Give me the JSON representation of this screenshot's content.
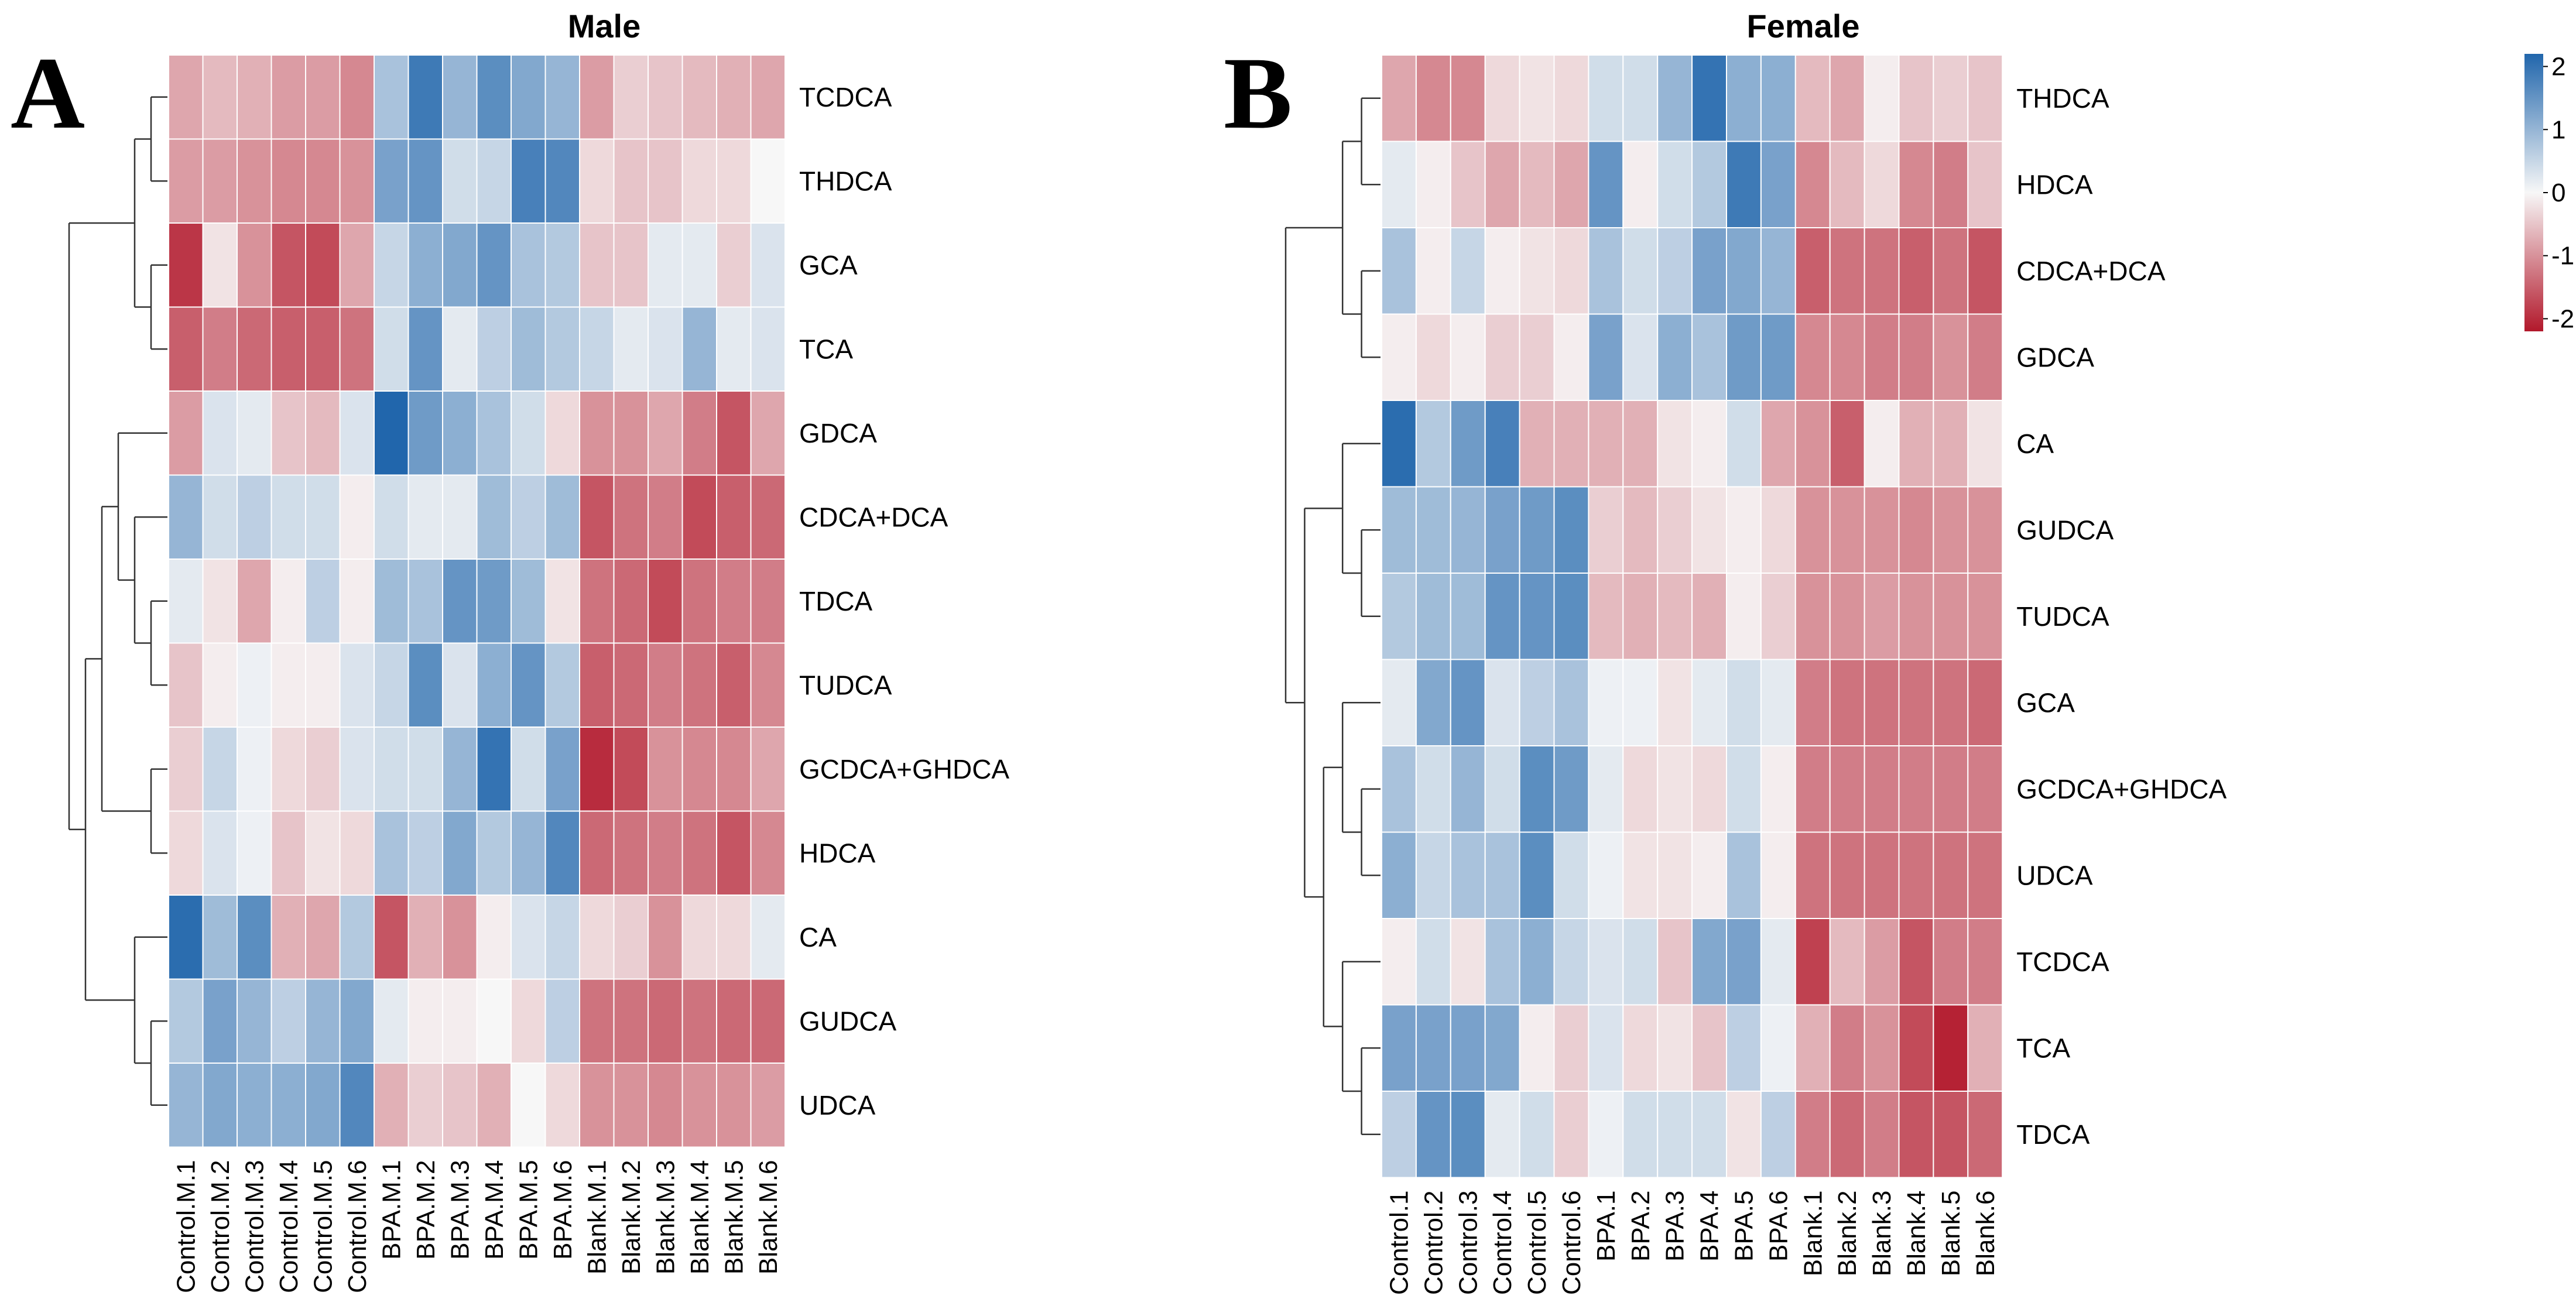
{
  "colors": {
    "low": "#b2182b",
    "mid": "#f7f7f7",
    "high": "#2166ac"
  },
  "legend": {
    "ticks": [
      2,
      1,
      0,
      -1,
      -2
    ],
    "range": [
      -2.2,
      2.2
    ]
  },
  "chart_data": [
    {
      "type": "heatmap",
      "panel_letter": "A",
      "title": "Male",
      "rows": [
        "TCDCA",
        "THDCA",
        "GCA",
        "TCA",
        "GDCA",
        "CDCA+DCA",
        "TDCA",
        "TUDCA",
        "GCDCA+GHDCA",
        "HDCA",
        "CA",
        "GUDCA",
        "UDCA"
      ],
      "columns": [
        "Control.M.1",
        "Control.M.2",
        "Control.M.3",
        "Control.M.4",
        "Control.M.5",
        "Control.M.6",
        "BPA.M.1",
        "BPA.M.2",
        "BPA.M.3",
        "BPA.M.4",
        "BPA.M.5",
        "BPA.M.6",
        "Blank.M.1",
        "Blank.M.2",
        "Blank.M.3",
        "Blank.M.4",
        "Blank.M.5",
        "Blank.M.6"
      ],
      "values": [
        [
          -0.8,
          -0.6,
          -0.7,
          -0.9,
          -0.9,
          -1.1,
          0.8,
          1.9,
          1.0,
          1.6,
          1.2,
          1.0,
          -0.9,
          -0.4,
          -0.5,
          -0.6,
          -0.7,
          -0.8
        ],
        [
          -0.9,
          -0.9,
          -1.0,
          -1.1,
          -1.1,
          -1.0,
          1.3,
          1.5,
          0.4,
          0.5,
          1.8,
          1.7,
          -0.3,
          -0.5,
          -0.5,
          -0.3,
          -0.3,
          0.0
        ],
        [
          -1.9,
          -0.2,
          -1.0,
          -1.6,
          -1.7,
          -0.8,
          0.5,
          1.1,
          1.2,
          1.5,
          0.8,
          0.7,
          -0.5,
          -0.5,
          0.2,
          0.2,
          -0.4,
          0.3
        ],
        [
          -1.5,
          -1.2,
          -1.4,
          -1.5,
          -1.5,
          -1.3,
          0.4,
          1.5,
          0.2,
          0.6,
          0.9,
          0.7,
          0.5,
          0.2,
          0.3,
          1.0,
          0.2,
          0.3
        ],
        [
          -0.9,
          0.3,
          0.2,
          -0.5,
          -0.6,
          0.3,
          2.2,
          1.4,
          1.1,
          0.8,
          0.4,
          -0.3,
          -1.0,
          -1.0,
          -0.8,
          -1.2,
          -1.6,
          -0.8
        ],
        [
          1.0,
          0.4,
          0.6,
          0.4,
          0.4,
          -0.1,
          0.4,
          0.2,
          0.2,
          0.9,
          0.6,
          0.9,
          -1.6,
          -1.3,
          -1.2,
          -1.7,
          -1.5,
          -1.4
        ],
        [
          0.2,
          -0.2,
          -0.8,
          -0.1,
          0.6,
          -0.1,
          0.9,
          0.8,
          1.5,
          1.4,
          0.9,
          -0.2,
          -1.3,
          -1.4,
          -1.7,
          -1.3,
          -1.2,
          -1.2
        ],
        [
          -0.5,
          -0.1,
          0.1,
          -0.1,
          -0.1,
          0.3,
          0.5,
          1.6,
          0.3,
          1.1,
          1.5,
          0.7,
          -1.5,
          -1.4,
          -1.2,
          -1.3,
          -1.5,
          -1.1
        ],
        [
          -0.4,
          0.5,
          0.1,
          -0.3,
          -0.4,
          0.3,
          0.4,
          0.4,
          1.0,
          2.0,
          0.4,
          1.3,
          -2.0,
          -1.7,
          -1.0,
          -1.1,
          -1.1,
          -0.8
        ],
        [
          -0.3,
          0.3,
          0.1,
          -0.5,
          -0.2,
          -0.3,
          0.8,
          0.6,
          1.2,
          0.7,
          1.0,
          1.7,
          -1.4,
          -1.3,
          -1.2,
          -1.3,
          -1.6,
          -1.1
        ],
        [
          2.1,
          0.9,
          1.6,
          -0.7,
          -0.8,
          0.7,
          -1.6,
          -0.7,
          -1.0,
          -0.1,
          0.3,
          0.5,
          -0.3,
          -0.4,
          -1.0,
          -0.3,
          -0.3,
          0.2
        ],
        [
          0.7,
          1.3,
          1.0,
          0.6,
          1.0,
          1.2,
          0.2,
          -0.1,
          -0.1,
          0.0,
          -0.3,
          0.6,
          -1.3,
          -1.3,
          -1.4,
          -1.3,
          -1.4,
          -1.4
        ],
        [
          1.0,
          1.2,
          1.1,
          1.1,
          1.2,
          1.7,
          -0.7,
          -0.4,
          -0.5,
          -0.7,
          0.0,
          -0.3,
          -1.0,
          -1.0,
          -1.1,
          -1.0,
          -1.0,
          -0.9
        ]
      ],
      "row_order_note": "rows listed top to bottom as displayed"
    },
    {
      "type": "heatmap",
      "panel_letter": "B",
      "title": "Female",
      "rows": [
        "THDCA",
        "HDCA",
        "CDCA+DCA",
        "GDCA",
        "CA",
        "GUDCA",
        "TUDCA",
        "GCA",
        "GCDCA+GHDCA",
        "UDCA",
        "TCDCA",
        "TCA",
        "TDCA"
      ],
      "columns": [
        "Control.1",
        "Control.2",
        "Control.3",
        "Control.4",
        "Control.5",
        "Control.6",
        "BPA.1",
        "BPA.2",
        "BPA.3",
        "BPA.4",
        "BPA.5",
        "BPA.6",
        "Blank.1",
        "Blank.2",
        "Blank.3",
        "Blank.4",
        "Blank.5",
        "Blank.6"
      ],
      "values": [
        [
          -0.8,
          -1.1,
          -1.1,
          -0.3,
          -0.2,
          -0.3,
          0.4,
          0.4,
          1.0,
          2.0,
          1.1,
          1.1,
          -0.6,
          -0.8,
          -0.1,
          -0.5,
          -0.4,
          -0.5
        ],
        [
          0.2,
          -0.1,
          -0.5,
          -0.8,
          -0.6,
          -0.8,
          1.5,
          -0.1,
          0.4,
          0.7,
          1.9,
          1.3,
          -1.1,
          -0.6,
          -0.3,
          -1.1,
          -1.2,
          -0.5
        ],
        [
          0.8,
          -0.1,
          0.5,
          -0.1,
          -0.2,
          -0.3,
          0.8,
          0.4,
          0.6,
          1.3,
          1.2,
          1.0,
          -1.5,
          -1.3,
          -1.3,
          -1.5,
          -1.3,
          -1.6
        ],
        [
          -0.1,
          -0.3,
          -0.1,
          -0.4,
          -0.4,
          -0.1,
          1.3,
          0.3,
          1.1,
          0.8,
          1.4,
          1.4,
          -1.1,
          -1.1,
          -1.2,
          -1.2,
          -1.0,
          -1.2
        ],
        [
          2.1,
          0.7,
          1.4,
          1.8,
          -0.7,
          -0.7,
          -0.7,
          -0.7,
          -0.2,
          -0.1,
          0.4,
          -0.8,
          -1.0,
          -1.5,
          -0.1,
          -0.7,
          -0.7,
          -0.2
        ],
        [
          0.9,
          0.9,
          1.0,
          1.3,
          1.4,
          1.6,
          -0.4,
          -0.6,
          -0.4,
          -0.2,
          -0.1,
          -0.3,
          -1.0,
          -1.0,
          -1.0,
          -1.1,
          -1.0,
          -1.0
        ],
        [
          0.7,
          0.9,
          0.9,
          1.5,
          1.5,
          1.6,
          -0.6,
          -0.7,
          -0.6,
          -0.7,
          -0.1,
          -0.4,
          -1.0,
          -1.0,
          -0.9,
          -1.0,
          -1.0,
          -1.0
        ],
        [
          0.2,
          1.2,
          1.5,
          0.3,
          0.6,
          0.8,
          0.1,
          0.1,
          -0.2,
          0.2,
          0.4,
          0.2,
          -1.2,
          -1.3,
          -1.3,
          -1.3,
          -1.3,
          -1.4
        ],
        [
          0.8,
          0.4,
          1.0,
          0.4,
          1.6,
          1.4,
          0.2,
          -0.3,
          -0.2,
          -0.3,
          0.4,
          -0.1,
          -1.2,
          -1.2,
          -1.2,
          -1.2,
          -1.2,
          -1.2
        ],
        [
          1.1,
          0.5,
          0.8,
          0.8,
          1.6,
          0.4,
          0.1,
          -0.2,
          -0.2,
          -0.1,
          0.8,
          -0.1,
          -1.3,
          -1.3,
          -1.3,
          -1.3,
          -1.3,
          -1.3
        ],
        [
          -0.1,
          0.4,
          -0.2,
          0.8,
          1.1,
          0.5,
          0.3,
          0.4,
          -0.5,
          1.2,
          1.3,
          0.2,
          -1.8,
          -0.6,
          -0.9,
          -1.6,
          -1.2,
          -1.2
        ],
        [
          1.3,
          1.3,
          1.3,
          1.2,
          -0.1,
          -0.4,
          0.3,
          -0.3,
          -0.2,
          -0.5,
          0.6,
          0.1,
          -0.7,
          -1.2,
          -1.0,
          -1.7,
          -2.1,
          -0.7
        ],
        [
          0.6,
          1.5,
          1.6,
          0.2,
          0.4,
          -0.4,
          0.1,
          0.4,
          0.4,
          0.4,
          -0.2,
          0.6,
          -1.2,
          -1.4,
          -1.2,
          -1.6,
          -1.6,
          -1.4
        ]
      ],
      "row_order_note": "rows listed top to bottom as displayed"
    }
  ]
}
